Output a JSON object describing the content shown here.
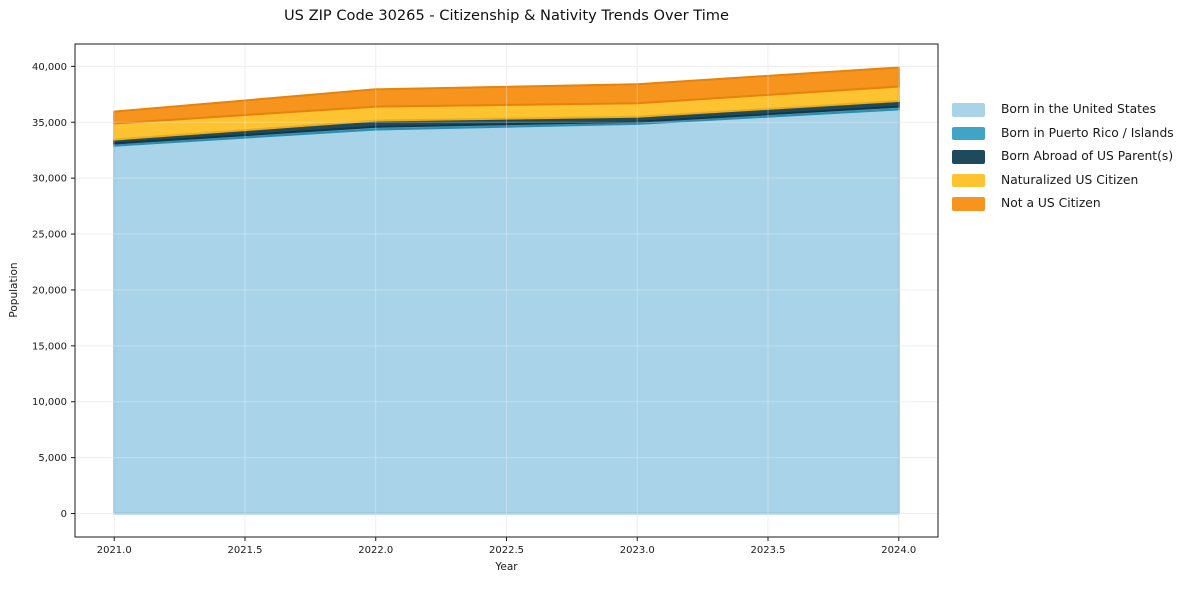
{
  "chart_data": {
    "type": "area",
    "stacked": true,
    "title": "US ZIP Code 30265 - Citizenship & Nativity Trends Over Time",
    "xlabel": "Year",
    "ylabel": "Population",
    "x": [
      2021,
      2022,
      2023,
      2024
    ],
    "series": [
      {
        "name": "Born in the United States",
        "color": "#a8d3e8",
        "edge": "#8fc2dc",
        "values": [
          32900,
          34350,
          34850,
          36150
        ]
      },
      {
        "name": "Born in Puerto Rico / Islands",
        "color": "#3fa5c6",
        "edge": "#2e8dad",
        "values": [
          200,
          250,
          200,
          250
        ]
      },
      {
        "name": "Born Abroad of US Parent(s)",
        "color": "#1f4a5e",
        "edge": "#153646",
        "values": [
          350,
          550,
          450,
          500
        ]
      },
      {
        "name": "Naturalized US Citizen",
        "color": "#fdc330",
        "edge": "#ecae14",
        "values": [
          1450,
          1250,
          1200,
          1300
        ]
      },
      {
        "name": "Not a US Citizen",
        "color": "#f7941e",
        "edge": "#e5830d",
        "values": [
          1050,
          1550,
          1700,
          1700
        ]
      }
    ],
    "totals": [
      35950,
      37950,
      38400,
      39900
    ],
    "xlim": [
      2020.85,
      2024.15
    ],
    "ylim": [
      -2100,
      42000
    ],
    "xticks": {
      "values": [
        2021.0,
        2021.5,
        2022.0,
        2022.5,
        2023.0,
        2023.5,
        2024.0
      ],
      "labels": [
        "2021.0",
        "2021.5",
        "2022.0",
        "2022.5",
        "2023.0",
        "2023.5",
        "2024.0"
      ]
    },
    "yticks": {
      "values": [
        0,
        5000,
        10000,
        15000,
        20000,
        25000,
        30000,
        35000,
        40000
      ],
      "labels": [
        "0",
        "5,000",
        "10,000",
        "15,000",
        "20,000",
        "25,000",
        "30,000",
        "35,000",
        "40,000"
      ]
    },
    "grid": true,
    "legend_position": "right",
    "colors": {
      "grid": "#e8e8e8",
      "grid_overlay": "rgba(255,255,255,0.30)",
      "spine": "#1a1a1a",
      "text": "#1a1a1a"
    }
  }
}
